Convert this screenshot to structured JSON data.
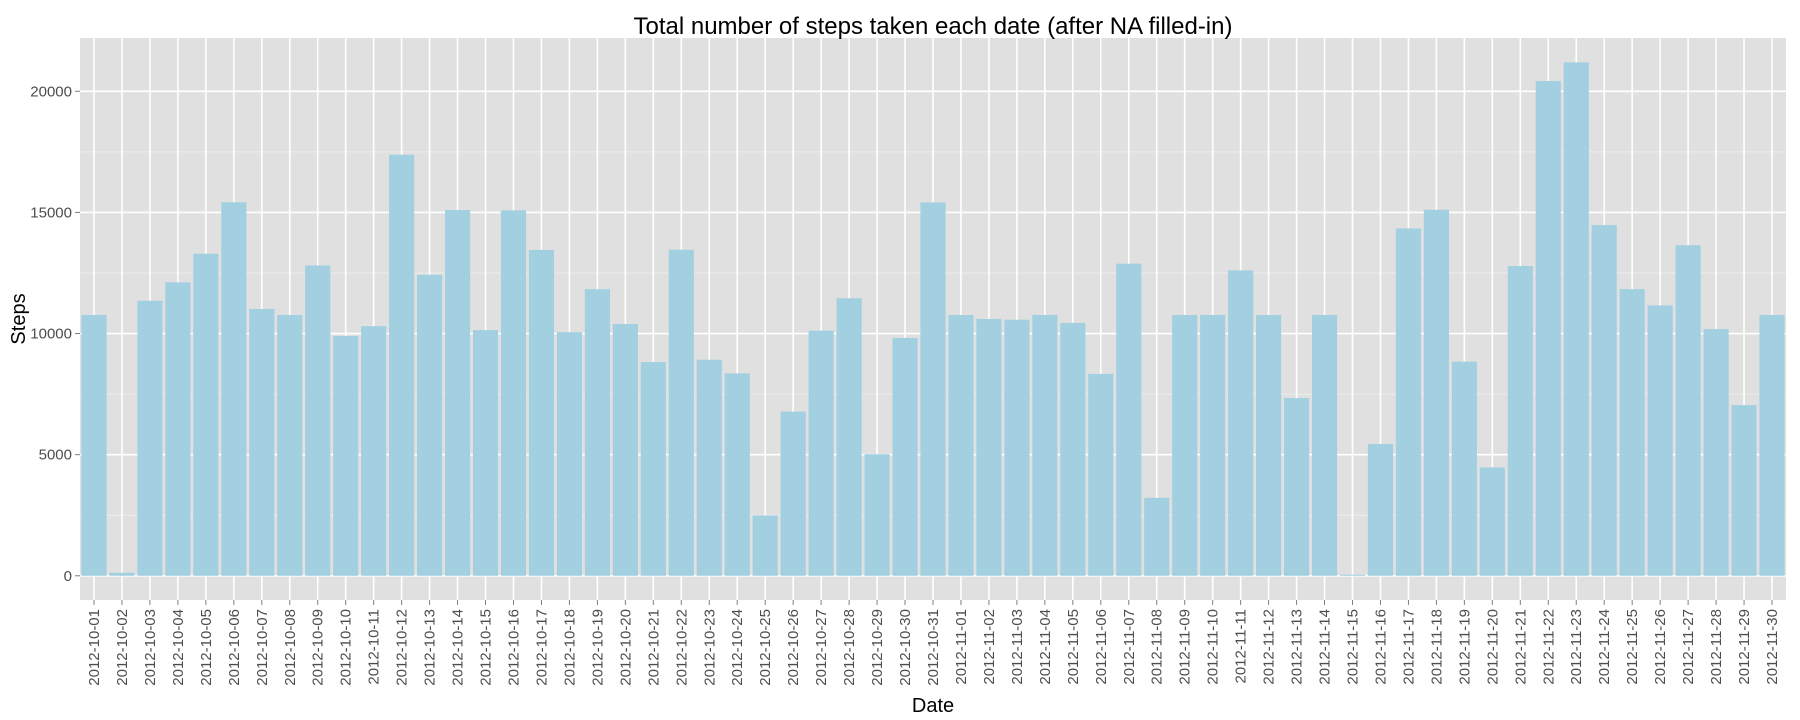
{
  "chart_data": {
    "type": "bar",
    "title": "Total number of steps taken each date (after NA filled-in)",
    "xlabel": "Date",
    "ylabel": "Steps",
    "ylim": [
      -1000,
      22200
    ],
    "yticks": [
      0,
      5000,
      10000,
      15000,
      20000
    ],
    "grid": true,
    "legend": "none",
    "colors": {
      "bar": "#a2d0e1",
      "panel": "#e0e0e0",
      "grid": "#ffffff",
      "tick": "#4d4d4d"
    },
    "categories": [
      "2012-10-01",
      "2012-10-02",
      "2012-10-03",
      "2012-10-04",
      "2012-10-05",
      "2012-10-06",
      "2012-10-07",
      "2012-10-08",
      "2012-10-09",
      "2012-10-10",
      "2012-10-11",
      "2012-10-12",
      "2012-10-13",
      "2012-10-14",
      "2012-10-15",
      "2012-10-16",
      "2012-10-17",
      "2012-10-18",
      "2012-10-19",
      "2012-10-20",
      "2012-10-21",
      "2012-10-22",
      "2012-10-23",
      "2012-10-24",
      "2012-10-25",
      "2012-10-26",
      "2012-10-27",
      "2012-10-28",
      "2012-10-29",
      "2012-10-30",
      "2012-10-31",
      "2012-11-01",
      "2012-11-02",
      "2012-11-03",
      "2012-11-04",
      "2012-11-05",
      "2012-11-06",
      "2012-11-07",
      "2012-11-08",
      "2012-11-09",
      "2012-11-10",
      "2012-11-11",
      "2012-11-12",
      "2012-11-13",
      "2012-11-14",
      "2012-11-15",
      "2012-11-16",
      "2012-11-17",
      "2012-11-18",
      "2012-11-19",
      "2012-11-20",
      "2012-11-21",
      "2012-11-22",
      "2012-11-23",
      "2012-11-24",
      "2012-11-25",
      "2012-11-26",
      "2012-11-27",
      "2012-11-28",
      "2012-11-29",
      "2012-11-30"
    ],
    "values": [
      10766,
      126,
      11352,
      12116,
      13294,
      15420,
      11015,
      10766,
      12811,
      9900,
      10304,
      17382,
      12426,
      15098,
      10139,
      15084,
      13452,
      10056,
      11829,
      10395,
      8821,
      13460,
      8918,
      8355,
      2492,
      6778,
      10119,
      11458,
      5018,
      9819,
      15414,
      10766,
      10600,
      10571,
      10766,
      10439,
      8334,
      12883,
      3219,
      10766,
      10766,
      12608,
      10765,
      7336,
      10766,
      41,
      5441,
      14339,
      15110,
      8841,
      4472,
      12787,
      20427,
      21194,
      14478,
      11834,
      11162,
      13646,
      10183,
      7047,
      10766
    ]
  }
}
